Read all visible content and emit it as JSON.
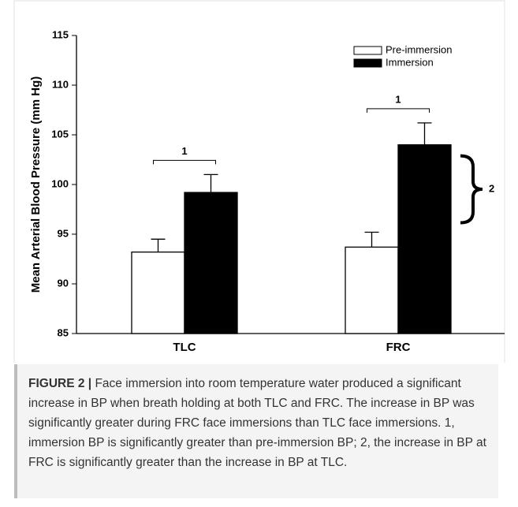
{
  "chart_data": {
    "type": "bar",
    "y_label": "Mean Arterial Blood Pressure (mm Hg)",
    "categories": [
      "TLC",
      "FRC"
    ],
    "series": [
      {
        "name": "Pre-immersion",
        "color": "#ffffff",
        "values": [
          93.2,
          93.7
        ],
        "errors": [
          1.3,
          1.5
        ]
      },
      {
        "name": "Immersion",
        "color": "#000000",
        "values": [
          99.2,
          104.0
        ],
        "errors": [
          1.8,
          2.2
        ]
      }
    ],
    "ylim": [
      85,
      115
    ],
    "yticks": [
      85,
      90,
      95,
      100,
      105,
      110,
      115
    ],
    "legend": "top-right",
    "annotations": [
      "1",
      "1",
      "2"
    ]
  },
  "caption": {
    "label": "FIGURE 2 |",
    "text": "Face immersion into room temperature water produced a significant increase in BP when breath holding at both TLC and FRC. The increase in BP was significantly greater during FRC face immersions than TLC face immersions. 1, immersion BP is significantly greater than pre-immersion BP; 2, the increase in BP at FRC is significantly greater than the increase in BP at TLC."
  }
}
